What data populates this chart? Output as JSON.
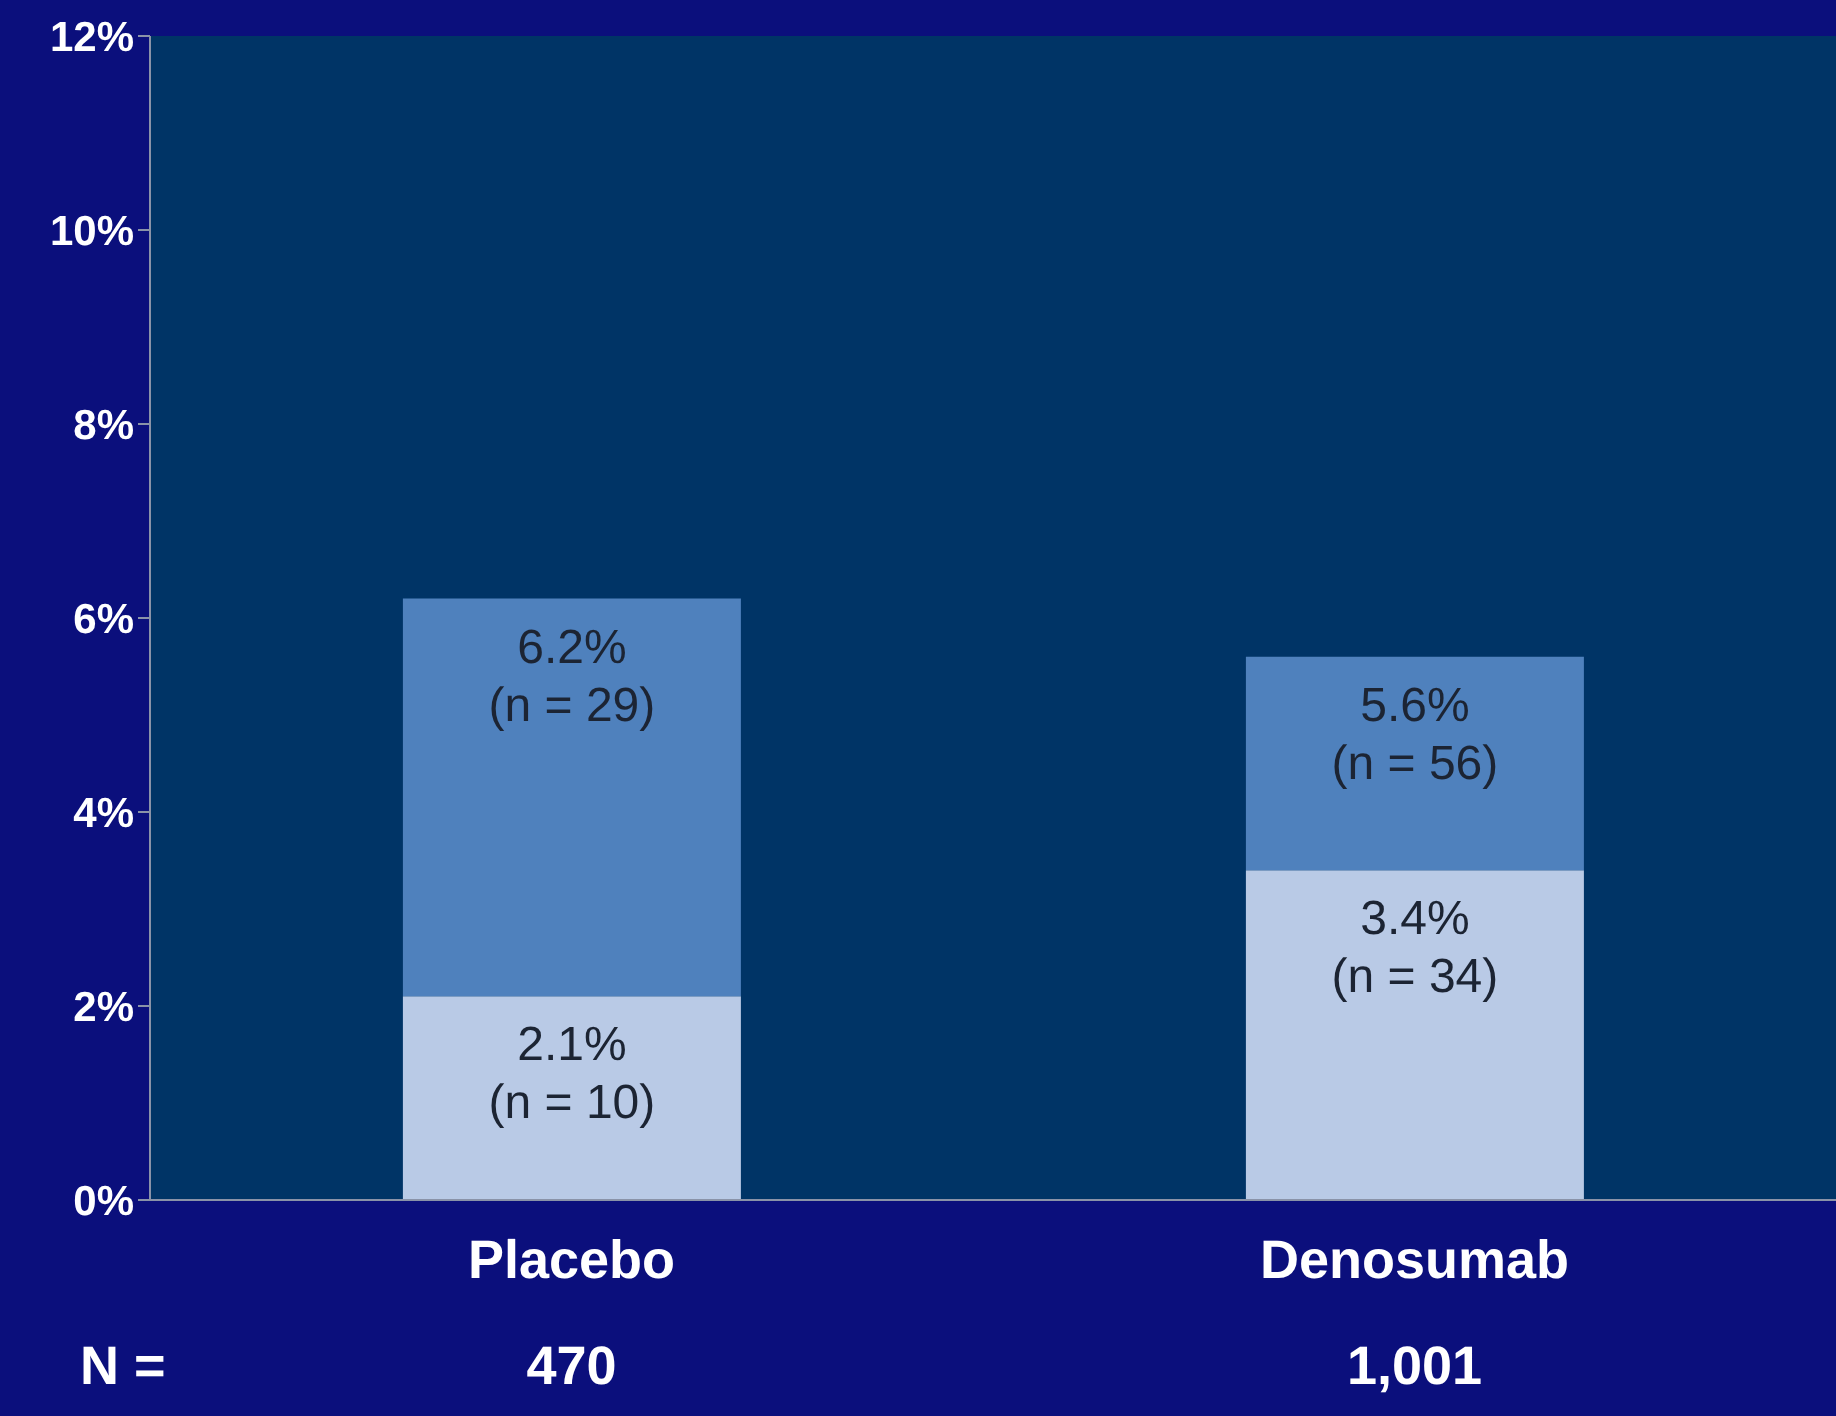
{
  "chart_data": {
    "type": "bar",
    "stacked": true,
    "categories": [
      "Placebo",
      "Denosumab"
    ],
    "series": [
      {
        "color": "#b9cae6",
        "values": [
          2.1,
          3.4
        ],
        "value_labels": [
          "2.1% (n = 10)",
          "3.4% (n = 34)"
        ]
      },
      {
        "color": "#4f81bd",
        "values": [
          4.1,
          2.2
        ]
      }
    ],
    "totals": [
      "6.2% (n = 29)",
      "5.6% (n = 56)"
    ],
    "ylim": [
      0,
      12
    ],
    "yticks": [
      {
        "value": 0,
        "label": "0%"
      },
      {
        "value": 2,
        "label": "2%"
      },
      {
        "value": 4,
        "label": "4%"
      },
      {
        "value": 6,
        "label": "6%"
      },
      {
        "value": 8,
        "label": "8%"
      },
      {
        "value": 10,
        "label": "10%"
      },
      {
        "value": 12,
        "label": "12%"
      }
    ],
    "grid": false,
    "legend": false,
    "annotations": [
      "N =",
      "470",
      "1,001"
    ]
  }
}
